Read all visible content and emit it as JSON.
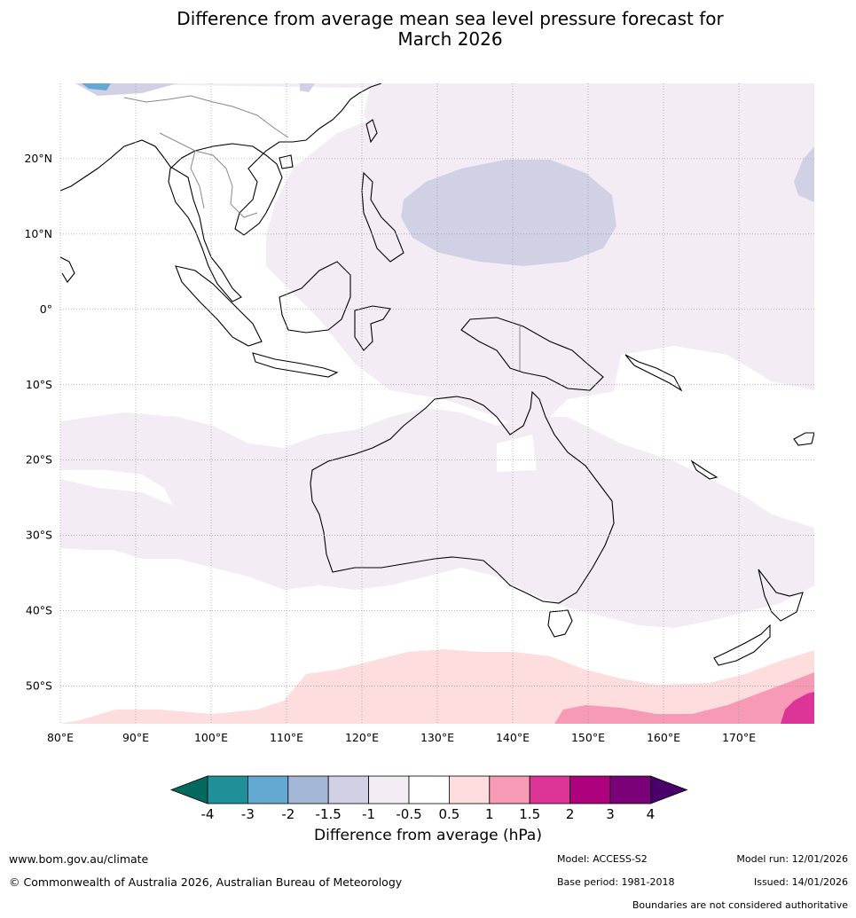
{
  "title": {
    "line1": "Difference from average mean sea level pressure forecast for",
    "line2": "March 2026"
  },
  "map": {
    "lat_labels": [
      {
        "lat": 20,
        "label": "20°N"
      },
      {
        "lat": 10,
        "label": "10°N"
      },
      {
        "lat": 0,
        "label": "0°"
      },
      {
        "lat": -10,
        "label": "10°S"
      },
      {
        "lat": -20,
        "label": "20°S"
      },
      {
        "lat": -30,
        "label": "30°S"
      },
      {
        "lat": -40,
        "label": "40°S"
      },
      {
        "lat": -50,
        "label": "50°S"
      }
    ],
    "lon_labels": [
      {
        "lon": 80,
        "label": "80°E"
      },
      {
        "lon": 90,
        "label": "90°E"
      },
      {
        "lon": 100,
        "label": "100°E"
      },
      {
        "lon": 110,
        "label": "110°E"
      },
      {
        "lon": 120,
        "label": "120°E"
      },
      {
        "lon": 130,
        "label": "130°E"
      },
      {
        "lon": 140,
        "label": "140°E"
      },
      {
        "lon": 150,
        "label": "150°E"
      },
      {
        "lon": 160,
        "label": "160°E"
      },
      {
        "lon": 170,
        "label": "170°E"
      }
    ],
    "extent": {
      "lon_min": 80,
      "lon_max": 180,
      "lat_min": -55,
      "lat_max": 30
    },
    "field_colors": {
      "neg_0_5_to_1": "#f3ecf5",
      "neg_1_to_1_5": "#d1d1e6",
      "neg_2_to_3": "#64a9d2",
      "pos_0_5_to_1": "#fddddd",
      "pos_1_to_1_5": "#f69ab6",
      "pos_1_5_to_2": "#dd3497"
    }
  },
  "colorbar": {
    "colors": [
      "#026a5d",
      "#1f8f99",
      "#64a9d2",
      "#a5b7d7",
      "#d1d1e6",
      "#f3ecf5",
      "#ffffff",
      "#fddddd",
      "#f69ab6",
      "#dd3497",
      "#ae017e",
      "#7a0177",
      "#49006a"
    ],
    "ticks": [
      "-4",
      "-3",
      "-2",
      "-1.5",
      "-1",
      "-0.5",
      "0.5",
      "1",
      "1.5",
      "2",
      "3",
      "4"
    ],
    "title": "Difference from average (hPa)"
  },
  "footer": {
    "website": "www.bom.gov.au/climate",
    "copyright": "© Commonwealth of Australia 2026, Australian Bureau of Meteorology",
    "model": "Model: ACCESS-S2",
    "base_period": "Base period: 1981-2018",
    "model_run": "Model run: 12/01/2026",
    "issued": "Issued: 14/01/2026",
    "boundaries_note": "Boundaries are not considered authoritative"
  }
}
